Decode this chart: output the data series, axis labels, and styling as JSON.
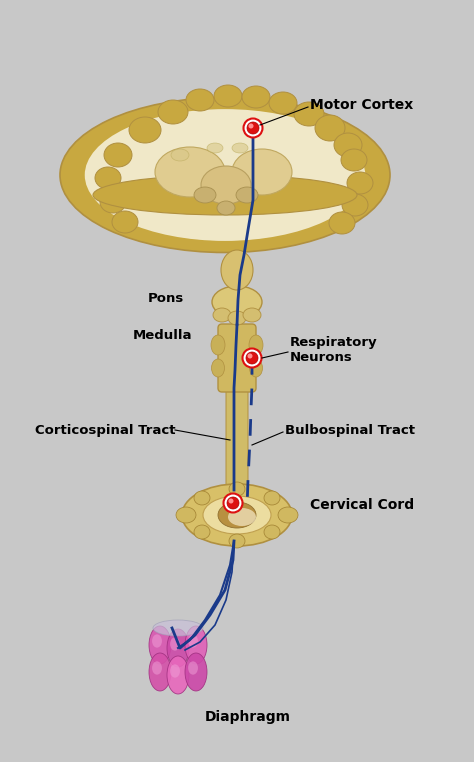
{
  "background_color": "#c8c8c8",
  "labels": {
    "motor_cortex": "Motor Cortex",
    "pons": "Pons",
    "medulla": "Medulla",
    "respiratory_neurons": "Respiratory\nNeurons",
    "corticospinal_tract": "Corticospinal Tract",
    "bulbospinal_tract": "Bulbospinal Tract",
    "cervical_cord": "Cervical Cord",
    "diaphragm": "Diaphragm"
  },
  "brain_outer_color": "#c8a840",
  "brain_inner_color": "#f0e8c8",
  "brain_mid_color": "#e0cc90",
  "brainstem_color": "#d4b860",
  "brainstem_edge": "#b09040",
  "cord_color": "#d8c070",
  "cervical_color": "#d8c070",
  "cervical_inner": "#b8904a",
  "line_color": "#1a3a8a",
  "node_color": "#dd1111",
  "node_outer": "#ff6666",
  "diaphragm_tube": "#cc44aa",
  "diaphragm_tube_light": "#ee88cc",
  "diaphragm_connector": "#c0b0d0"
}
